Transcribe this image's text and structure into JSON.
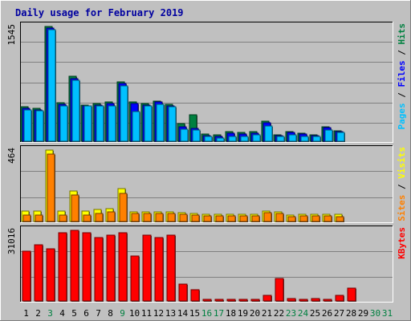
{
  "chart_data": {
    "type": "bar",
    "title": "Daily usage for February 2019",
    "categories": [
      "1",
      "2",
      "3",
      "4",
      "5",
      "6",
      "7",
      "8",
      "9",
      "10",
      "11",
      "12",
      "13",
      "14",
      "15",
      "16",
      "17",
      "18",
      "19",
      "20",
      "21",
      "22",
      "23",
      "24",
      "25",
      "26",
      "27",
      "28",
      "29",
      "30",
      "31"
    ],
    "weekend_days": [
      3,
      9,
      16,
      17,
      23,
      24,
      30,
      31
    ],
    "panels": [
      {
        "id": "hits-files-pages",
        "max_label": "1545",
        "ylim": [
          0,
          1545
        ],
        "legend": [
          {
            "text": "Pages",
            "color": "#00c0ff"
          },
          {
            "text": "Files",
            "color": "#0000ff"
          },
          {
            "text": "Hits",
            "color": "#008040"
          }
        ],
        "series": [
          {
            "name": "Hits",
            "color": "#008040",
            "values": [
              465,
              440,
              1545,
              520,
              870,
              490,
              510,
              525,
              800,
              525,
              505,
              545,
              495,
              240,
              360,
              100,
              85,
              130,
              115,
              130,
              270,
              90,
              130,
              110,
              85,
              195,
              145,
              null,
              null,
              null,
              null
            ]
          },
          {
            "name": "Files",
            "color": "#0000ff",
            "values": [
              445,
              420,
              1520,
              500,
              840,
              480,
              490,
              505,
              775,
              505,
              490,
              530,
              480,
              190,
              175,
              80,
              70,
              110,
              100,
              110,
              245,
              75,
              120,
              100,
              75,
              185,
              135,
              null,
              null,
              null,
              null
            ]
          },
          {
            "name": "Pages",
            "color": "#00c0ff",
            "values": [
              420,
              410,
              1500,
              470,
              820,
              470,
              470,
              480,
              750,
              400,
              470,
              500,
              460,
              160,
              150,
              70,
              40,
              70,
              70,
              90,
              200,
              60,
              90,
              70,
              70,
              150,
              120,
              null,
              null,
              null,
              null
            ]
          }
        ]
      },
      {
        "id": "visits-sites",
        "max_label": "464",
        "ylim": [
          0,
          464
        ],
        "legend": [
          {
            "text": "Sites",
            "color": "#ff8000"
          },
          {
            "text": "Visits",
            "color": "#ffff00"
          }
        ],
        "series": [
          {
            "name": "Visits",
            "color": "#ffff00",
            "values": [
              70,
              70,
              464,
              70,
              200,
              70,
              80,
              85,
              215,
              65,
              60,
              60,
              60,
              55,
              50,
              45,
              45,
              45,
              45,
              45,
              70,
              60,
              40,
              45,
              45,
              45,
              45,
              null,
              null,
              null,
              null
            ]
          },
          {
            "name": "Sites",
            "color": "#ff8000",
            "values": [
              40,
              40,
              440,
              40,
              170,
              40,
              50,
              60,
              185,
              50,
              50,
              50,
              50,
              45,
              40,
              35,
              35,
              35,
              35,
              35,
              55,
              50,
              30,
              35,
              35,
              35,
              30,
              null,
              null,
              null,
              null
            ]
          }
        ]
      },
      {
        "id": "kbytes",
        "max_label": "31016",
        "ylim": [
          0,
          31016
        ],
        "legend": [
          {
            "text": "KBytes",
            "color": "#ff0000"
          }
        ],
        "series": [
          {
            "name": "KBytes",
            "color": "#ff0000",
            "values": [
              22000,
              24500,
              23000,
              29800,
              31016,
              29800,
              27800,
              28800,
              30000,
              19600,
              29000,
              28000,
              28800,
              7500,
              5000,
              500,
              300,
              500,
              400,
              500,
              2500,
              9900,
              1100,
              300,
              900,
              800,
              2300,
              5500,
              null,
              null,
              null
            ]
          }
        ]
      }
    ]
  }
}
